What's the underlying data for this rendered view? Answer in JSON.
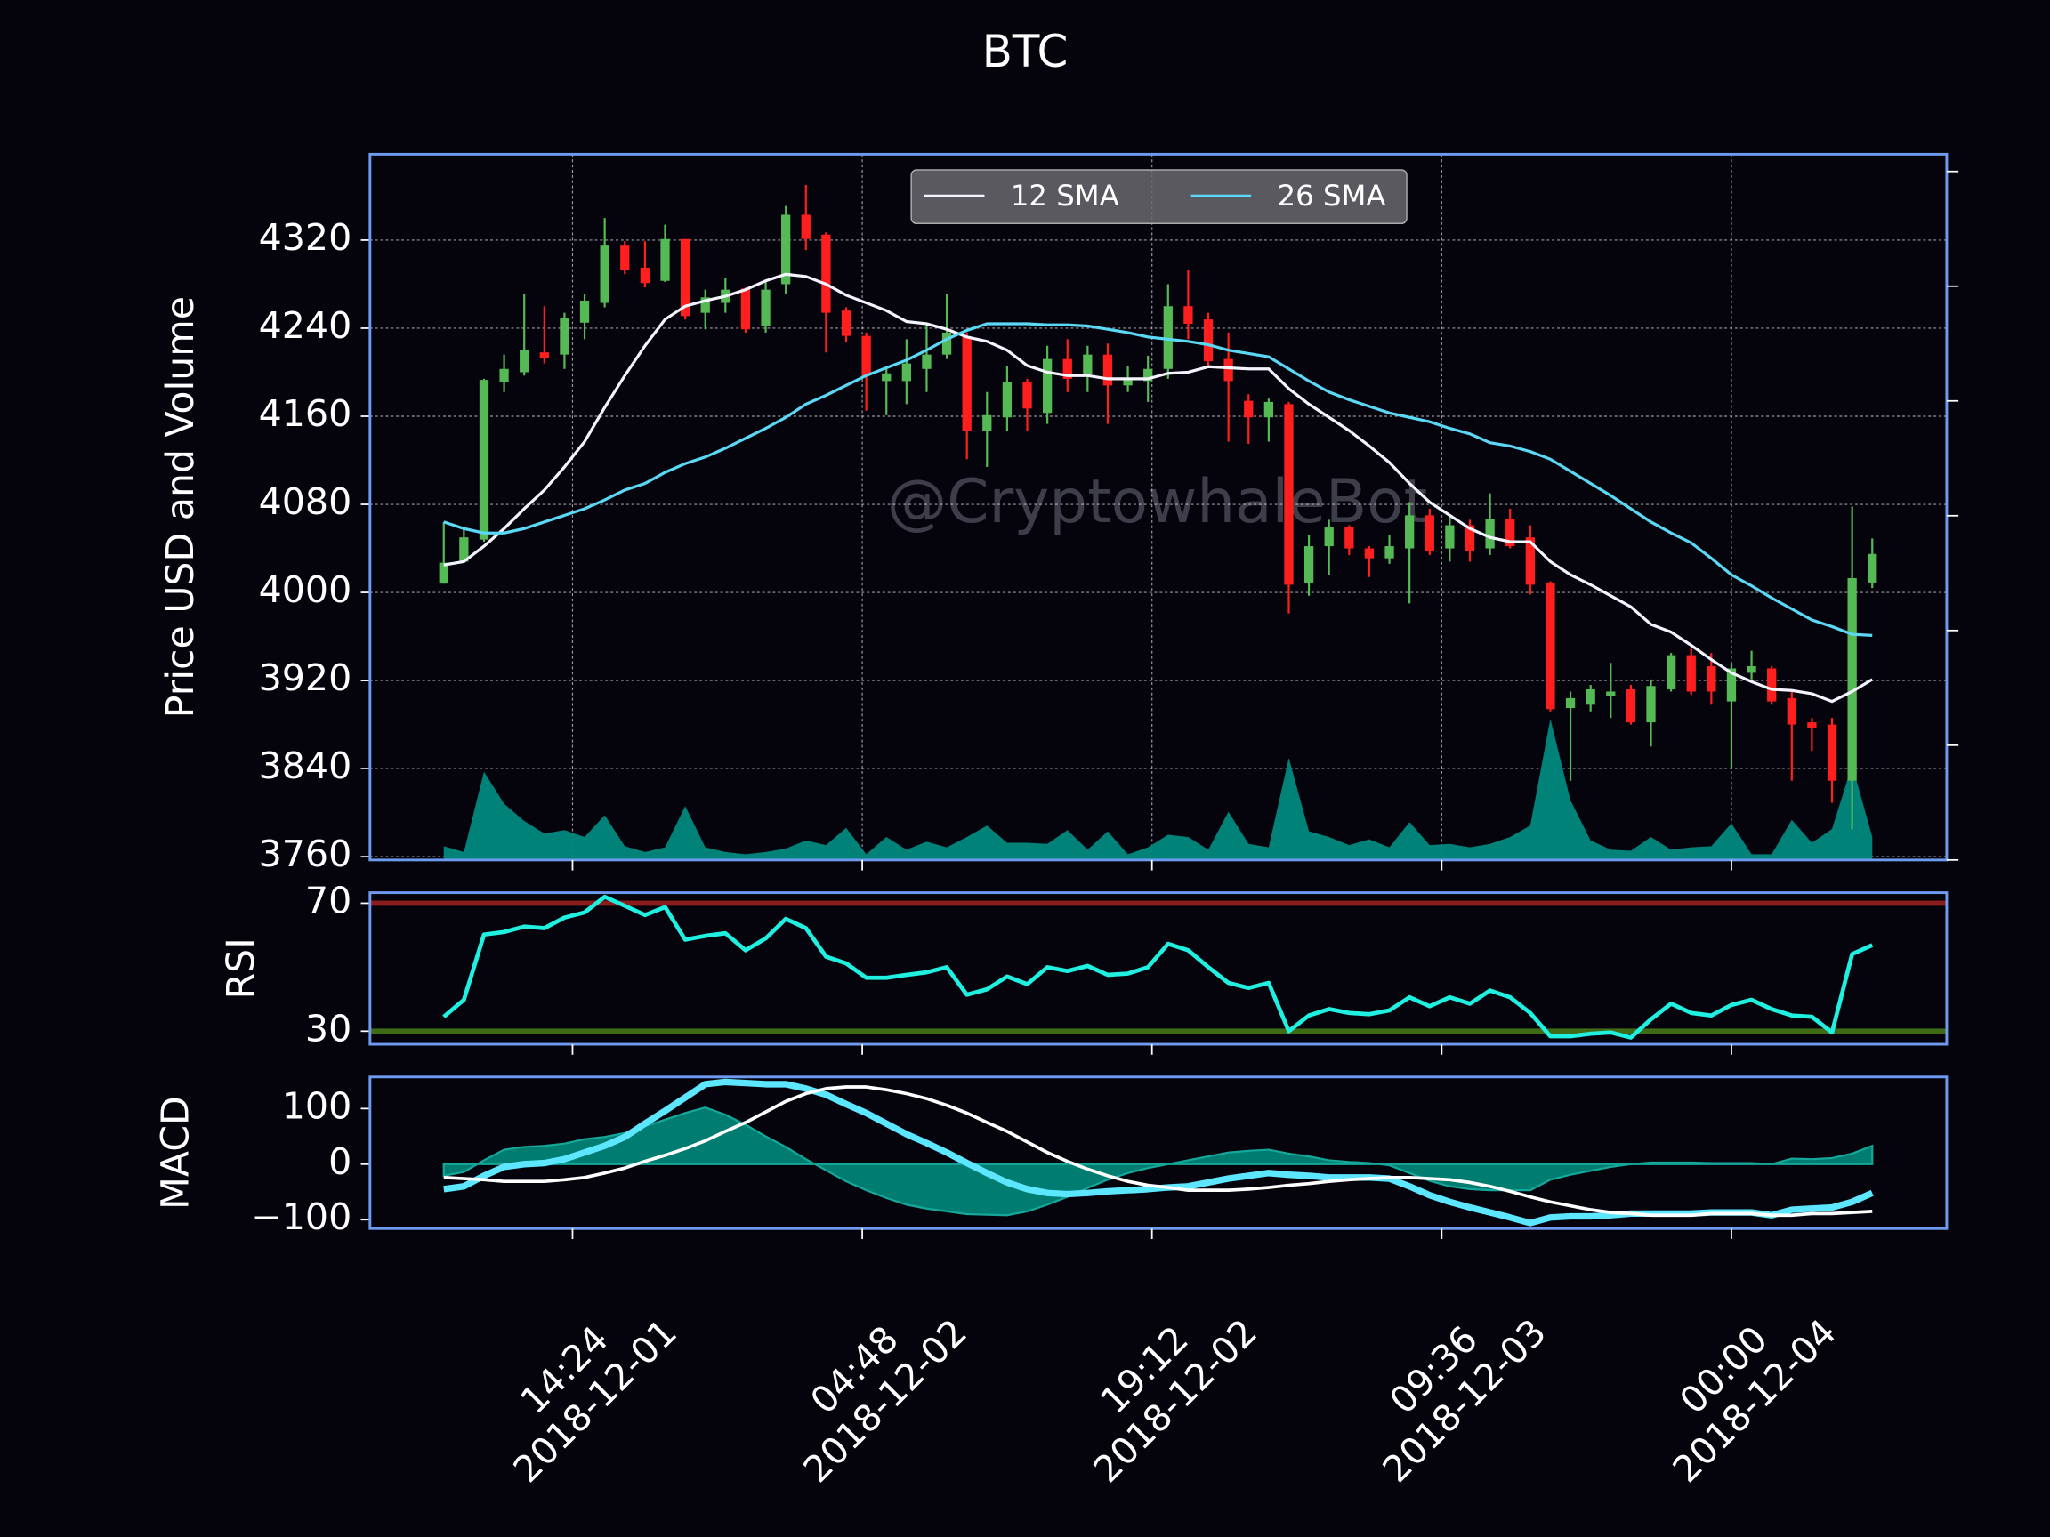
{
  "chart_data": [
    {
      "type": "candlestick",
      "title": "BTC",
      "ylabel": "Price USD and Volume",
      "watermark": "@CryptowhaleBot",
      "x": [
        "2018-12-01 08:00",
        "2018-12-01 09:00",
        "2018-12-01 10:00",
        "2018-12-01 11:00",
        "2018-12-01 12:00",
        "2018-12-01 13:00",
        "2018-12-01 14:00",
        "2018-12-01 15:00",
        "2018-12-01 16:00",
        "2018-12-01 17:00",
        "2018-12-01 18:00",
        "2018-12-01 19:00",
        "2018-12-01 20:00",
        "2018-12-01 21:00",
        "2018-12-01 22:00",
        "2018-12-01 23:00",
        "2018-12-02 00:00",
        "2018-12-02 01:00",
        "2018-12-02 02:00",
        "2018-12-02 03:00",
        "2018-12-02 04:00",
        "2018-12-02 05:00",
        "2018-12-02 06:00",
        "2018-12-02 07:00",
        "2018-12-02 08:00",
        "2018-12-02 09:00",
        "2018-12-02 10:00",
        "2018-12-02 11:00",
        "2018-12-02 12:00",
        "2018-12-02 13:00",
        "2018-12-02 14:00",
        "2018-12-02 15:00",
        "2018-12-02 16:00",
        "2018-12-02 17:00",
        "2018-12-02 18:00",
        "2018-12-02 19:00",
        "2018-12-02 20:00",
        "2018-12-02 21:00",
        "2018-12-02 22:00",
        "2018-12-02 23:00",
        "2018-12-03 00:00",
        "2018-12-03 01:00",
        "2018-12-03 02:00",
        "2018-12-03 03:00",
        "2018-12-03 04:00",
        "2018-12-03 05:00",
        "2018-12-03 06:00",
        "2018-12-03 07:00",
        "2018-12-03 08:00",
        "2018-12-03 09:00",
        "2018-12-03 10:00",
        "2018-12-03 11:00",
        "2018-12-03 12:00",
        "2018-12-03 13:00",
        "2018-12-03 14:00",
        "2018-12-03 15:00",
        "2018-12-03 16:00",
        "2018-12-03 17:00",
        "2018-12-03 18:00",
        "2018-12-03 19:00",
        "2018-12-03 20:00",
        "2018-12-03 21:00",
        "2018-12-03 22:00",
        "2018-12-03 23:00",
        "2018-12-04 00:00",
        "2018-12-04 01:00",
        "2018-12-04 02:00",
        "2018-12-04 03:00",
        "2018-12-04 04:00",
        "2018-12-04 05:00",
        "2018-12-04 06:00",
        "2018-12-04 07:00"
      ],
      "open": [
        4008,
        4028,
        4048,
        4191,
        4200,
        4218,
        4216,
        4245,
        4263,
        4315,
        4295,
        4283,
        4321,
        4254,
        4263,
        4276,
        4242,
        4280,
        4343,
        4325,
        4256,
        4233,
        4192,
        4192,
        4203,
        4216,
        4232,
        4147,
        4159,
        4191,
        4163,
        4212,
        4198,
        4216,
        4188,
        4192,
        4203,
        4260,
        4248,
        4212,
        4174,
        4159,
        4171,
        4009,
        4042,
        4059,
        4040,
        4031,
        4040,
        4070,
        4040,
        4061,
        4040,
        4067,
        4050,
        4009,
        3895,
        3898,
        3906,
        3912,
        3882,
        3912,
        3943,
        3933,
        3901,
        3927,
        3931,
        3904,
        3882,
        3880,
        3829,
        4009
      ],
      "high": [
        4064,
        4058,
        4194,
        4216,
        4271,
        4260,
        4254,
        4271,
        4340,
        4319,
        4319,
        4334,
        4321,
        4275,
        4286,
        4277,
        4283,
        4351,
        4370,
        4327,
        4259,
        4236,
        4206,
        4230,
        4244,
        4271,
        4236,
        4182,
        4206,
        4194,
        4224,
        4230,
        4224,
        4226,
        4206,
        4215,
        4280,
        4293,
        4254,
        4236,
        4180,
        4176,
        4173,
        4052,
        4066,
        4061,
        4042,
        4052,
        4082,
        4076,
        4070,
        4066,
        4090,
        4076,
        4061,
        4010,
        3910,
        3916,
        3936,
        3916,
        3921,
        3945,
        3949,
        3945,
        3936,
        3947,
        3933,
        3910,
        3886,
        3886,
        4078,
        4049
      ],
      "low": [
        4008,
        4028,
        4046,
        4182,
        4197,
        4208,
        4203,
        4230,
        4259,
        4289,
        4277,
        4282,
        4248,
        4239,
        4254,
        4236,
        4236,
        4271,
        4311,
        4218,
        4227,
        4165,
        4161,
        4171,
        4182,
        4212,
        4121,
        4114,
        4147,
        4147,
        4153,
        4182,
        4182,
        4153,
        4182,
        4173,
        4194,
        4230,
        4206,
        4137,
        4135,
        4137,
        3981,
        3997,
        4016,
        4034,
        4014,
        4026,
        3990,
        4034,
        4028,
        4028,
        4034,
        4040,
        3998,
        3892,
        3829,
        3892,
        3886,
        3880,
        3860,
        3910,
        3907,
        3898,
        3841,
        3921,
        3898,
        3829,
        3856,
        3809,
        3785,
        4004
      ],
      "close": [
        4027,
        4050,
        4193,
        4203,
        4220,
        4213,
        4249,
        4265,
        4315,
        4293,
        4281,
        4321,
        4251,
        4268,
        4275,
        4239,
        4275,
        4343,
        4321,
        4254,
        4233,
        4197,
        4199,
        4208,
        4216,
        4236,
        4147,
        4161,
        4191,
        4167,
        4212,
        4194,
        4216,
        4188,
        4194,
        4203,
        4260,
        4244,
        4210,
        4192,
        4159,
        4173,
        4007,
        4042,
        4059,
        4040,
        4031,
        4042,
        4070,
        4038,
        4061,
        4038,
        4067,
        4042,
        4007,
        3894,
        3904,
        3912,
        3910,
        3882,
        3915,
        3943,
        3910,
        3910,
        3931,
        3933,
        3901,
        3880,
        3877,
        3829,
        4013,
        4035
      ],
      "up_color": "#55b955",
      "down_color": "#ff1f1f",
      "series": [
        {
          "name": "12 SMA",
          "color": "#f4f4ff",
          "values": [
            4025,
            4028,
            4042,
            4058,
            4076,
            4093,
            4114,
            4137,
            4168,
            4197,
            4224,
            4248,
            4260,
            4265,
            4269,
            4275,
            4283,
            4289,
            4287,
            4280,
            4270,
            4263,
            4256,
            4246,
            4244,
            4239,
            4232,
            4228,
            4220,
            4206,
            4200,
            4197,
            4197,
            4194,
            4194,
            4194,
            4199,
            4200,
            4205,
            4204,
            4203,
            4203,
            4185,
            4171,
            4159,
            4147,
            4133,
            4118,
            4099,
            4082,
            4070,
            4058,
            4050,
            4046,
            4046,
            4028,
            4016,
            4007,
            3997,
            3987,
            3971,
            3964,
            3952,
            3939,
            3927,
            3919,
            3912,
            3911,
            3908,
            3901,
            3910,
            3921
          ]
        },
        {
          "name": "26 SMA",
          "color": "#5ad8f5",
          "values": [
            4064,
            4058,
            4054,
            4054,
            4058,
            4064,
            4070,
            4076,
            4084,
            4093,
            4099,
            4109,
            4117,
            4123,
            4131,
            4140,
            4149,
            4159,
            4171,
            4179,
            4188,
            4197,
            4204,
            4211,
            4220,
            4230,
            4238,
            4244,
            4244,
            4244,
            4243,
            4243,
            4242,
            4239,
            4236,
            4232,
            4230,
            4228,
            4225,
            4220,
            4217,
            4214,
            4203,
            4192,
            4182,
            4175,
            4169,
            4163,
            4159,
            4155,
            4149,
            4144,
            4136,
            4133,
            4128,
            4121,
            4110,
            4099,
            4088,
            4076,
            4064,
            4054,
            4045,
            4031,
            4016,
            4006,
            3995,
            3985,
            3975,
            3969,
            3962,
            3961
          ]
        }
      ],
      "volume": {
        "axis": "y2",
        "color": "#00897f",
        "values": [
          0.12,
          0.07,
          0.77,
          0.49,
          0.34,
          0.23,
          0.26,
          0.2,
          0.39,
          0.12,
          0.07,
          0.11,
          0.47,
          0.11,
          0.07,
          0.05,
          0.07,
          0.1,
          0.17,
          0.13,
          0.28,
          0.05,
          0.2,
          0.09,
          0.16,
          0.11,
          0.2,
          0.3,
          0.15,
          0.15,
          0.14,
          0.26,
          0.09,
          0.25,
          0.05,
          0.11,
          0.22,
          0.2,
          0.09,
          0.42,
          0.14,
          0.11,
          0.89,
          0.25,
          0.2,
          0.13,
          0.18,
          0.11,
          0.33,
          0.13,
          0.14,
          0.11,
          0.14,
          0.2,
          0.3,
          1.23,
          0.52,
          0.17,
          0.09,
          0.08,
          0.2,
          0.09,
          0.11,
          0.12,
          0.32,
          0.05,
          0.05,
          0.35,
          0.15,
          0.27,
          0.83,
          0.2
        ]
      },
      "xlim": [
        "2018-12-01 04:20",
        "2018-12-04 10:42"
      ],
      "xticks": [
        {
          "value": "2018-12-01 14:24",
          "label": "14:24\n2018-12-01"
        },
        {
          "value": "2018-12-02 04:48",
          "label": "04:48\n2018-12-02"
        },
        {
          "value": "2018-12-02 19:12",
          "label": "19:12\n2018-12-02"
        },
        {
          "value": "2018-12-03 09:36",
          "label": "09:36\n2018-12-03"
        },
        {
          "value": "2018-12-04 00:00",
          "label": "00:00\n2018-12-04"
        }
      ],
      "ylim": [
        3757,
        4398
      ],
      "yticks": [
        3760,
        3840,
        3920,
        4000,
        4080,
        4160,
        4240,
        4320
      ],
      "y2lim": [
        0,
        6.15
      ],
      "y2ticks": [
        0,
        1,
        2,
        3,
        4,
        5,
        6
      ],
      "grid": true,
      "legend": "upper center"
    },
    {
      "type": "line",
      "ylabel": "RSI",
      "series": [
        {
          "color": "#1ff0e0",
          "values": [
            34.5,
            39.8,
            60.2,
            61,
            62.7,
            62.2,
            65.5,
            67.1,
            72,
            69.2,
            66.3,
            68.8,
            58.6,
            59.8,
            60.6,
            55.3,
            59,
            65.1,
            62.2,
            53.3,
            51.2,
            46.7,
            46.7,
            47.6,
            48.4,
            50,
            41.4,
            43.1,
            47.1,
            44.7,
            50,
            48.8,
            50.4,
            47.6,
            48,
            50,
            57.3,
            55.3,
            50,
            45.1,
            43.5,
            45.1,
            30,
            34.9,
            36.9,
            35.7,
            35.3,
            36.5,
            40.6,
            37.8,
            40.6,
            38.6,
            42.7,
            40.6,
            35.7,
            28.4,
            28.4,
            29.2,
            29.6,
            28,
            33.7,
            38.6,
            35.7,
            34.9,
            38.2,
            39.8,
            36.9,
            34.9,
            34.5,
            29.6,
            54.1,
            56.9
          ]
        }
      ],
      "levels": [
        {
          "value": 70,
          "color": "#8b1c1c"
        },
        {
          "value": 30,
          "color": "#3f6b17"
        }
      ],
      "ylim": [
        25.9,
        73.3
      ],
      "yticks": [
        30,
        70
      ]
    },
    {
      "type": "line",
      "ylabel": "MACD",
      "series": [
        {
          "color": "#5ce6ff",
          "values": [
            -45,
            -40,
            -21,
            -5,
            0,
            2,
            9,
            21,
            33,
            49,
            73,
            96,
            120,
            144,
            148,
            146,
            144,
            144,
            136,
            125,
            108,
            92,
            73,
            54,
            38,
            21,
            2,
            -16,
            -33,
            -45,
            -52,
            -54,
            -52,
            -49,
            -47,
            -45,
            -42,
            -40,
            -33,
            -26,
            -21,
            -16,
            -19,
            -21,
            -24,
            -24,
            -24,
            -26,
            -40,
            -56,
            -68,
            -78,
            -87,
            -96,
            -106,
            -96,
            -94,
            -94,
            -92,
            -89,
            -89,
            -89,
            -89,
            -87,
            -87,
            -87,
            -92,
            -82,
            -80,
            -78,
            -68,
            -52
          ]
        },
        {
          "color": "#ffffff",
          "values": [
            -24,
            -26,
            -28,
            -31,
            -31,
            -31,
            -28,
            -24,
            -16,
            -7,
            5,
            16,
            28,
            42,
            59,
            75,
            94,
            113,
            127,
            136,
            139,
            139,
            134,
            127,
            118,
            106,
            92,
            75,
            59,
            40,
            21,
            5,
            -9,
            -21,
            -31,
            -38,
            -42,
            -47,
            -47,
            -47,
            -45,
            -42,
            -38,
            -35,
            -31,
            -28,
            -26,
            -24,
            -24,
            -26,
            -28,
            -33,
            -40,
            -49,
            -59,
            -68,
            -75,
            -82,
            -87,
            -89,
            -92,
            -92,
            -92,
            -89,
            -89,
            -89,
            -92,
            -92,
            -89,
            -89,
            -87,
            -85
          ]
        }
      ],
      "histogram": {
        "color": "#00897b",
        "values": [
          -21,
          -14,
          7,
          26,
          31,
          33,
          37,
          45,
          49,
          56,
          68,
          80,
          92,
          102,
          89,
          71,
          50,
          31,
          9,
          -11,
          -31,
          -47,
          -61,
          -73,
          -80,
          -85,
          -90,
          -91,
          -92,
          -85,
          -73,
          -59,
          -43,
          -28,
          -16,
          -7,
          0,
          7,
          14,
          21,
          24,
          26,
          19,
          14,
          7,
          4,
          2,
          -2,
          -16,
          -30,
          -40,
          -45,
          -47,
          -47,
          -47,
          -28,
          -19,
          -12,
          -5,
          0,
          3,
          3,
          3,
          2,
          2,
          2,
          0,
          10,
          9,
          11,
          19,
          33
        ]
      },
      "ylim": [
        -116,
        157
      ],
      "yticks": [
        {
          "value": -100,
          "label": "−100"
        },
        0,
        100
      ]
    }
  ]
}
